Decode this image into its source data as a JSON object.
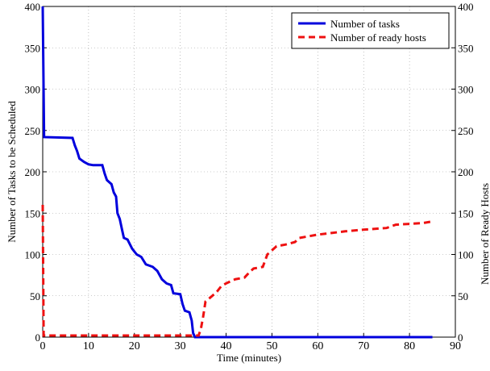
{
  "chart_data": {
    "type": "line",
    "xlabel": "Time (minutes)",
    "ylabel": "Number of Tasks to be Scheduled",
    "y2label": "Number of Ready Hosts",
    "xlim": [
      0,
      90
    ],
    "xticks": [
      0,
      10,
      20,
      30,
      40,
      50,
      60,
      70,
      80,
      90
    ],
    "ylim": [
      0,
      400
    ],
    "yticks": [
      0,
      50,
      100,
      150,
      200,
      250,
      300,
      350,
      400
    ],
    "y2lim": [
      0,
      400
    ],
    "y2ticks": [
      0,
      50,
      100,
      150,
      200,
      250,
      300,
      350,
      400
    ],
    "grid": true,
    "legend": "upper right",
    "series": [
      {
        "name": "Number of tasks",
        "color": "#0000dd",
        "line_style": "solid",
        "x": [
          0,
          0.3,
          6.5,
          7,
          7.5,
          8,
          9,
          10,
          11,
          13,
          13.5,
          14,
          15,
          15.5,
          16,
          16.3,
          16.8,
          17.3,
          17.7,
          18.5,
          19.5,
          20.5,
          21.5,
          22.5,
          24,
          25,
          26,
          27,
          28,
          28.5,
          30,
          30.5,
          31,
          32,
          32.5,
          32.8,
          33.2,
          85
        ],
        "values": [
          400,
          242,
          241,
          232,
          225,
          216,
          212,
          209,
          208,
          208,
          198,
          190,
          185,
          175,
          170,
          150,
          143,
          130,
          120,
          118,
          107,
          100,
          97,
          88,
          85,
          80,
          70,
          65,
          63,
          53,
          52,
          40,
          32,
          30,
          20,
          5,
          0,
          0
        ]
      },
      {
        "name": "Number of ready hosts",
        "color": "#ee1111",
        "line_style": "dashed",
        "axis": "y2",
        "x": [
          0,
          0.2,
          33,
          34,
          34.5,
          35,
          35.5,
          37,
          38,
          39,
          40,
          42,
          44,
          45,
          46,
          48,
          49,
          50,
          51,
          53,
          55,
          56,
          58,
          60,
          63,
          66,
          70,
          75,
          77,
          80,
          83,
          85
        ],
        "values": [
          160,
          2,
          2,
          2,
          10,
          25,
          43,
          50,
          55,
          62,
          65,
          70,
          72,
          78,
          83,
          85,
          100,
          105,
          110,
          112,
          115,
          120,
          122,
          124,
          126,
          128,
          130,
          132,
          136,
          137,
          138,
          140
        ]
      }
    ]
  }
}
